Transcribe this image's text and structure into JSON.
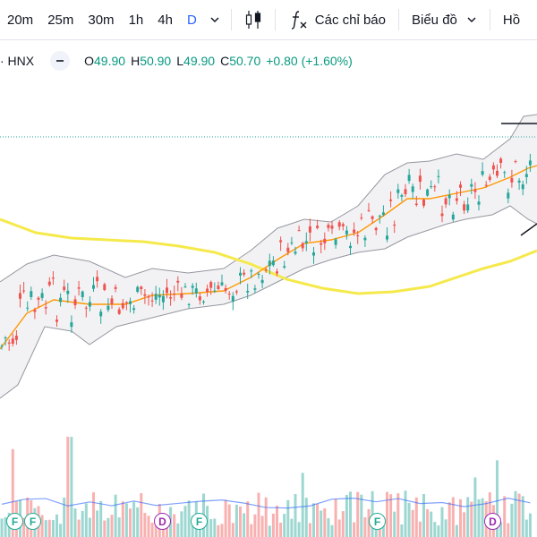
{
  "toolbar": {
    "timeframes": [
      "20m",
      "25m",
      "30m",
      "1h",
      "4h",
      "D"
    ],
    "active_timeframe": "D",
    "indicators_label": "Các chỉ báo",
    "templates_label": "Biểu đồ",
    "cut_label": "Hồ"
  },
  "legend": {
    "symbol": "· HNX",
    "o_key": "O",
    "o_val": "49.90",
    "h_key": "H",
    "h_val": "50.90",
    "l_key": "L",
    "l_val": "49.90",
    "c_key": "C",
    "c_val": "50.70",
    "change": "+0.80 (+1.60%)"
  },
  "markers": [
    {
      "label": "F",
      "kind": "dividend"
    },
    {
      "label": "F",
      "kind": "dividend"
    },
    {
      "label": "D",
      "kind": "dividend"
    },
    {
      "label": "F",
      "kind": "dividend"
    },
    {
      "label": "F",
      "kind": "dividend"
    },
    {
      "label": "D",
      "kind": "dividend"
    }
  ],
  "colors": {
    "up": "#26a69a",
    "down": "#ef5350",
    "ma_long": "#f5e94b",
    "ma_mid": "#ff9800",
    "band": "#9598a1",
    "accent": "#2962ff"
  },
  "chart_data": {
    "type": "candlestick",
    "close_last": 50.7,
    "series": [
      {
        "name": "",
        "values": [
          46.8,
          47.0,
          46.6,
          47.3,
          47.8,
          47.4,
          48.2,
          48.0,
          47.6,
          48.4
        ]
      }
    ]
  }
}
